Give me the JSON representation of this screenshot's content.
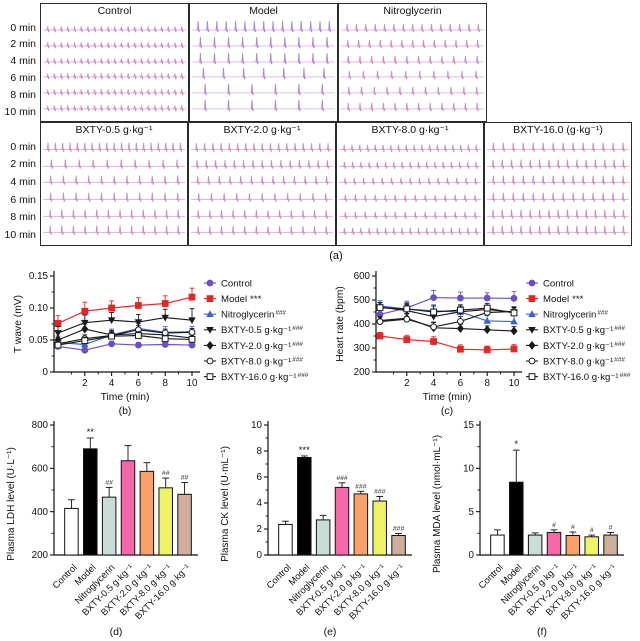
{
  "panel_a": {
    "label": "(a)",
    "time_labels": [
      "0 min",
      "2 min",
      "4 min",
      "6 min",
      "8 min",
      "10 min"
    ],
    "trace_baseline_color": "#e3bcd6",
    "trace_spike_color": "#c78fc0",
    "row1": [
      {
        "title": "Control",
        "spikes": [
          21,
          21,
          21,
          21,
          21,
          21
        ],
        "amp": 3.5
      },
      {
        "title": "Model",
        "spikes": [
          15,
          10,
          10,
          7,
          6,
          6
        ],
        "amp": 9,
        "base": "#dcc4e4",
        "spike": "#b286cd"
      },
      {
        "title": "Nitroglycerin",
        "spikes": [
          15,
          13,
          12,
          10,
          11,
          12
        ],
        "amp": 6
      }
    ],
    "row2": [
      {
        "title": "BXTY-0.5 g·kg⁻¹",
        "spikes": [
          19,
          10,
          11,
          11,
          12,
          12
        ],
        "amp": 6.5
      },
      {
        "title": "BXTY-2.0 g·kg⁻¹",
        "spikes": [
          17,
          15,
          13,
          11,
          12,
          12
        ],
        "amp": 6
      },
      {
        "title": "BXTY-8.0 g·kg⁻¹",
        "spikes": [
          18,
          17,
          15,
          14,
          14,
          17
        ],
        "amp": 4.5
      },
      {
        "title": "BXTY-16.0 (g·kg⁻¹)",
        "spikes": [
          14,
          15,
          14,
          14,
          15,
          15
        ],
        "amp": 6.5
      }
    ]
  },
  "series_styles": [
    {
      "color": "#6c4fc4",
      "marker": "circle",
      "open": false
    },
    {
      "color": "#e02828",
      "marker": "square",
      "open": false
    },
    {
      "color": "#3c64c8",
      "marker": "triangle",
      "open": false
    },
    {
      "color": "#1a1a1a",
      "marker": "triangle-down",
      "open": false
    },
    {
      "color": "#1a1a1a",
      "marker": "diamond",
      "open": false
    },
    {
      "color": "#1a1a1a",
      "marker": "circle",
      "open": true
    },
    {
      "color": "#1a1a1a",
      "marker": "square",
      "open": true
    }
  ],
  "chart_data": [
    {
      "id": "b",
      "type": "line",
      "panel_label": "(b)",
      "ylabel": "T wave (mV)",
      "xlabel": "Time (min)",
      "ylim": [
        0,
        0.15
      ],
      "yticks": [
        0,
        0.05,
        0.1,
        0.15
      ],
      "ytick_labels": [
        "0",
        "0.05",
        "0.10",
        "0.15"
      ],
      "xlim": [
        0,
        10
      ],
      "xticks": [
        2,
        4,
        6,
        8,
        10
      ],
      "xtick_labels": [
        "2",
        "4",
        "6",
        "8",
        "10"
      ],
      "x": [
        0,
        2,
        4,
        6,
        8,
        10
      ],
      "series": [
        {
          "name": "Control",
          "sig": "",
          "values": [
            0.04,
            0.034,
            0.044,
            0.042,
            0.043,
            0.042
          ],
          "err": [
            0.004,
            0.004,
            0.004,
            0.004,
            0.004,
            0.004
          ]
        },
        {
          "name": "Model",
          "sig": "***",
          "values": [
            0.076,
            0.095,
            0.1,
            0.104,
            0.107,
            0.117
          ],
          "err": [
            0.012,
            0.014,
            0.011,
            0.012,
            0.012,
            0.014
          ]
        },
        {
          "name": "Nitroglycerin",
          "sig": "###",
          "values": [
            0.046,
            0.043,
            0.058,
            0.068,
            0.062,
            0.063
          ],
          "err": [
            0.008,
            0.008,
            0.009,
            0.008,
            0.009,
            0.008
          ]
        },
        {
          "name": "BXTY-0.5 g·kg⁻¹",
          "sig": "###",
          "values": [
            0.061,
            0.077,
            0.081,
            0.078,
            0.085,
            0.081
          ],
          "err": [
            0.01,
            0.012,
            0.012,
            0.012,
            0.013,
            0.018
          ]
        },
        {
          "name": "BXTY-2.0 g·kg⁻¹",
          "sig": "###",
          "values": [
            0.05,
            0.067,
            0.058,
            0.06,
            0.058,
            0.053
          ],
          "err": [
            0.006,
            0.008,
            0.007,
            0.007,
            0.006,
            0.006
          ]
        },
        {
          "name": "BXTY-8.0 g·kg⁻¹",
          "sig": "###",
          "values": [
            0.044,
            0.052,
            0.057,
            0.066,
            0.061,
            0.062
          ],
          "err": [
            0.005,
            0.006,
            0.006,
            0.007,
            0.006,
            0.006
          ]
        },
        {
          "name": "BXTY-16.0 g·kg⁻¹",
          "sig": "###",
          "values": [
            0.042,
            0.049,
            0.056,
            0.057,
            0.052,
            0.051
          ],
          "err": [
            0.005,
            0.005,
            0.006,
            0.006,
            0.005,
            0.005
          ]
        }
      ]
    },
    {
      "id": "c",
      "type": "line",
      "panel_label": "(c)",
      "ylabel": "Heart rate (bpm)",
      "xlabel": "Time (min)",
      "ylim": [
        200,
        600
      ],
      "yticks": [
        200,
        300,
        400,
        500,
        600
      ],
      "ytick_labels": [
        "200",
        "300",
        "400",
        "500",
        "600"
      ],
      "xlim": [
        0,
        10
      ],
      "xticks": [
        2,
        4,
        6,
        8,
        10
      ],
      "xtick_labels": [
        "2",
        "4",
        "6",
        "8",
        "10"
      ],
      "x": [
        0,
        2,
        4,
        6,
        8,
        10
      ],
      "series": [
        {
          "name": "Control",
          "sig": "",
          "values": [
            440,
            467,
            510,
            508,
            508,
            507
          ],
          "err": [
            25,
            28,
            30,
            25,
            22,
            28
          ]
        },
        {
          "name": "Model",
          "sig": "***",
          "values": [
            350,
            335,
            327,
            295,
            292,
            296
          ],
          "err": [
            15,
            18,
            20,
            18,
            16,
            18
          ]
        },
        {
          "name": "Nitroglycerin",
          "sig": "###",
          "values": [
            475,
            462,
            455,
            450,
            413,
            410
          ],
          "err": [
            22,
            28,
            25,
            25,
            22,
            25
          ]
        },
        {
          "name": "BXTY-0.5 g·kg⁻¹",
          "sig": "###",
          "values": [
            470,
            456,
            431,
            451,
            461,
            449
          ],
          "err": [
            20,
            25,
            22,
            20,
            18,
            20
          ]
        },
        {
          "name": "BXTY-2.0 g·kg⁻¹",
          "sig": "###",
          "values": [
            414,
            424,
            384,
            381,
            376,
            371
          ],
          "err": [
            18,
            20,
            22,
            18,
            16,
            18
          ]
        },
        {
          "name": "BXTY-8.0 g·kg⁻¹",
          "sig": "###",
          "values": [
            410,
            420,
            388,
            411,
            448,
            452
          ],
          "err": [
            18,
            22,
            20,
            20,
            18,
            20
          ]
        },
        {
          "name": "BXTY-16.0 g·kg⁻¹",
          "sig": "###",
          "values": [
            468,
            463,
            450,
            458,
            466,
            446
          ],
          "err": [
            20,
            22,
            25,
            22,
            20,
            22
          ]
        }
      ]
    },
    {
      "id": "d",
      "type": "bar",
      "panel_label": "(d)",
      "ylabel": "Plasma LDH level (U·L⁻¹)",
      "ylim": [
        200,
        800
      ],
      "yticks": [
        200,
        400,
        600,
        800
      ],
      "categories": [
        "Control",
        "Model",
        "Nitroglycerin",
        "BXTY-0.5 g·kg⁻¹",
        "BXTY-2.0 g·kg⁻¹",
        "BXTY-8.0 g·kg⁻¹",
        "BXTY-16.0 g·kg⁻¹"
      ],
      "values": [
        415,
        690,
        467,
        635,
        586,
        510,
        480
      ],
      "errors": [
        40,
        50,
        45,
        70,
        40,
        45,
        55
      ],
      "sig": [
        "",
        "**",
        "##",
        "",
        "",
        "##",
        "##"
      ],
      "colors": [
        "#ffffff",
        "#000000",
        "#c9dcd8",
        "#f768a8",
        "#f9a168",
        "#eef266",
        "#cfae9e"
      ]
    },
    {
      "id": "e",
      "type": "bar",
      "panel_label": "(e)",
      "ylabel": "Plasma CK level (U·mL⁻¹)",
      "ylim": [
        0,
        10
      ],
      "yticks": [
        0,
        2,
        4,
        6,
        8,
        10
      ],
      "categories": [
        "Control",
        "Model",
        "Nitroglycerin",
        "BXTY-0.5 g·kg⁻¹",
        "BXTY-2.0 g·kg⁻¹",
        "BXTY-8.0 g·kg⁻¹",
        "BXTY-16.0 g·kg⁻¹"
      ],
      "values": [
        2.35,
        7.5,
        2.7,
        5.2,
        4.7,
        4.15,
        1.5
      ],
      "errors": [
        0.25,
        0.12,
        0.35,
        0.35,
        0.2,
        0.35,
        0.15
      ],
      "sig": [
        "",
        "***",
        "",
        "###",
        "###",
        "###",
        "###"
      ],
      "colors": [
        "#ffffff",
        "#000000",
        "#c9dcd8",
        "#f768a8",
        "#f9a168",
        "#eef266",
        "#cfae9e"
      ]
    },
    {
      "id": "f",
      "type": "bar",
      "panel_label": "(f)",
      "ylabel": "Plasma MDA level (nmol·mL⁻¹)",
      "ylim": [
        0,
        15
      ],
      "yticks": [
        0,
        5,
        10,
        15
      ],
      "categories": [
        "Control",
        "Model",
        "Nitroglycerin",
        "BXTY-0.5 g·kg⁻¹",
        "BXTY-2.0 g·kg⁻¹",
        "BXTY-8.0 g·kg⁻¹",
        "BXTY-16.0 g·kg⁻¹"
      ],
      "values": [
        2.3,
        8.4,
        2.3,
        2.6,
        2.25,
        2.1,
        2.3
      ],
      "errors": [
        0.6,
        3.7,
        0.25,
        0.3,
        0.4,
        0.2,
        0.3
      ],
      "sig": [
        "",
        "*",
        "",
        "#",
        "#",
        "#",
        "#"
      ],
      "colors": [
        "#ffffff",
        "#000000",
        "#c9dcd8",
        "#f768a8",
        "#f9a168",
        "#eef266",
        "#cfae9e"
      ]
    }
  ]
}
